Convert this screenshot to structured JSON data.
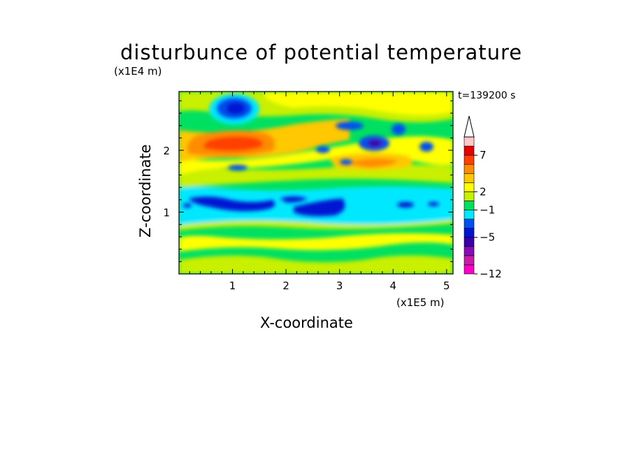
{
  "chart_data": {
    "type": "heatmap",
    "title": "disturbunce of potential temperature",
    "xlabel": "X-coordinate",
    "ylabel": "Z-coordinate",
    "x_unit": "(x1E5 m)",
    "y_unit": "(x1E4 m)",
    "time_label": "t=139200 s",
    "xlim": [
      0,
      5.12
    ],
    "ylim": [
      0,
      2.95
    ],
    "x_ticks": [
      "1",
      "2",
      "3",
      "4",
      "5"
    ],
    "y_ticks": [
      "1",
      "2"
    ],
    "colorbar": {
      "tick_labels": [
        "7",
        "2",
        "−1",
        "−5",
        "−12"
      ],
      "colors": [
        "#ff00c8",
        "#c71caa",
        "#8a0ab8",
        "#3a00a8",
        "#0014d2",
        "#0050f0",
        "#00e8ff",
        "#00e060",
        "#c8f000",
        "#ffff00",
        "#ffc800",
        "#ff8c00",
        "#ff4000",
        "#e60000",
        "#ffc8c8"
      ]
    },
    "features": [
      {
        "x": 1.0,
        "z": 2.65,
        "value": -6
      },
      {
        "x": 1.0,
        "z": 2.07,
        "value": 6
      },
      {
        "x": 3.6,
        "z": 2.13,
        "value": -7
      },
      {
        "x": 3.6,
        "z": 1.85,
        "value": 5
      },
      {
        "x": 1.0,
        "z": 1.18,
        "value": -4
      },
      {
        "x": 3.0,
        "z": 1.08,
        "value": -4
      }
    ]
  }
}
